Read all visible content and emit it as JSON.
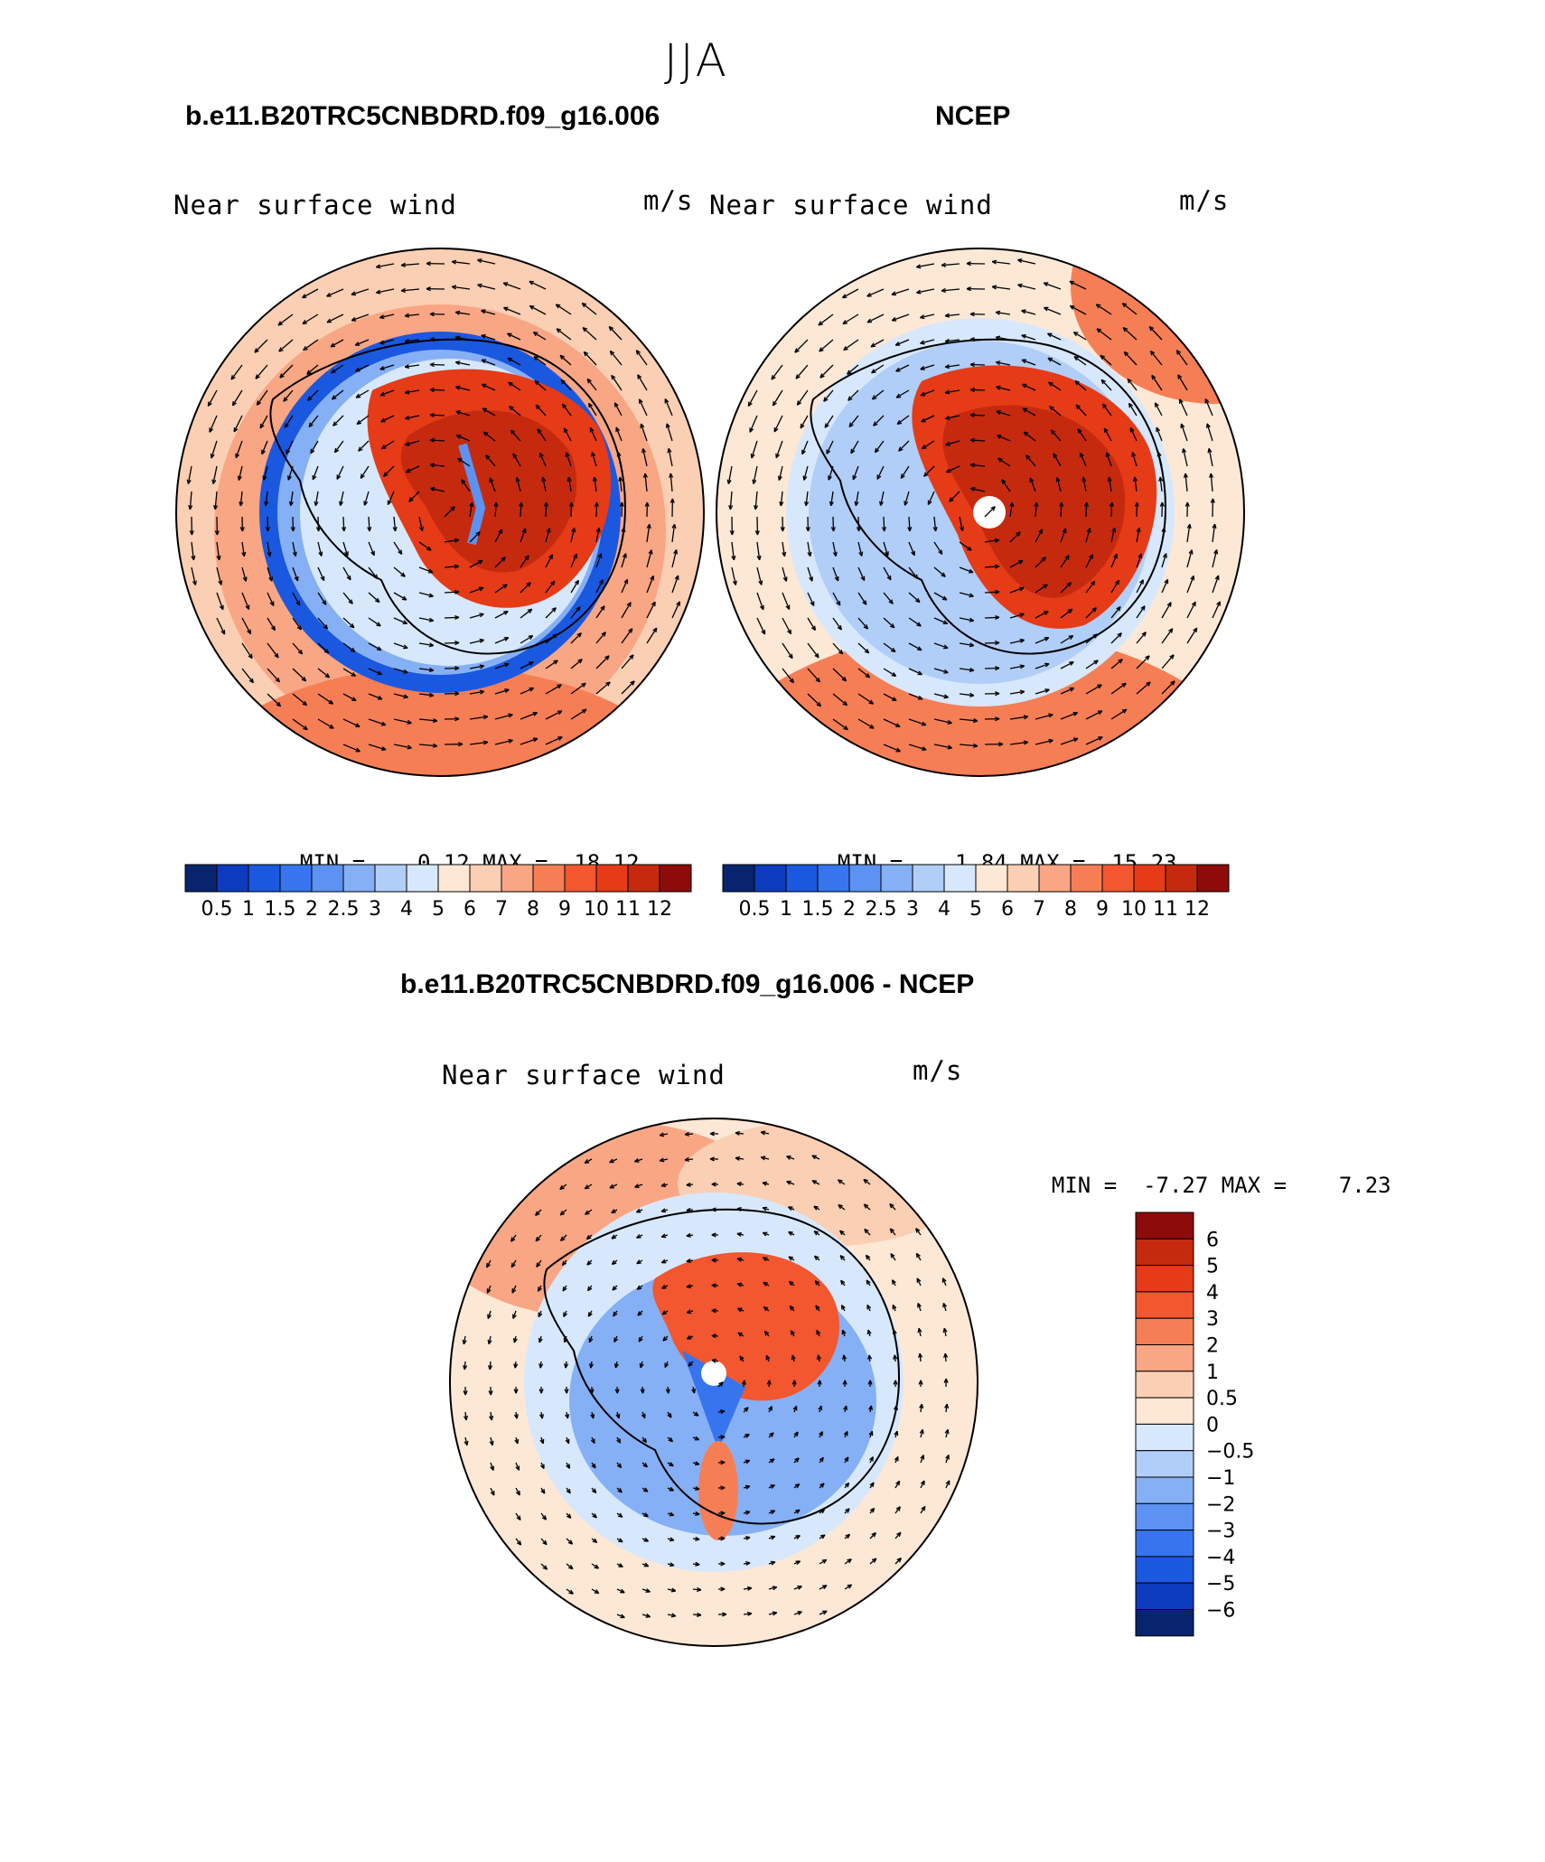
{
  "figure": {
    "season": "JJA"
  },
  "colors": {
    "cold": [
      "#08246e",
      "#0d3bbd",
      "#1a58df",
      "#3675ee",
      "#5c93f2",
      "#86b0f5",
      "#b1cef9",
      "#d7e8fc"
    ],
    "warm": [
      "#fde8d6",
      "#fbcfb3",
      "#f9a684",
      "#f67e55",
      "#f2572f",
      "#e53b17",
      "#c52a0f",
      "#8e0b0b"
    ]
  },
  "chart_data": [
    {
      "type": "heatmap",
      "panel_title": "b.e11.B20TRC5CNBDRD.f09_g16.006",
      "variable": "Near surface wind",
      "units": "m/s",
      "min_label": "MIN =",
      "min": "0.12",
      "max_label": "MAX =",
      "max": "18.12",
      "levels": [
        "0.5",
        "1",
        "1.5",
        "2",
        "2.5",
        "3",
        "4",
        "5",
        "6",
        "7",
        "8",
        "9",
        "10",
        "11",
        "12"
      ],
      "field": "absolute"
    },
    {
      "type": "heatmap",
      "panel_title": "NCEP",
      "variable": "Near surface wind",
      "units": "m/s",
      "min_label": "MIN =",
      "min": "1.84",
      "max_label": "MAX =",
      "max": "15.23",
      "levels": [
        "0.5",
        "1",
        "1.5",
        "2",
        "2.5",
        "3",
        "4",
        "5",
        "6",
        "7",
        "8",
        "9",
        "10",
        "11",
        "12"
      ],
      "field": "absolute"
    },
    {
      "type": "heatmap",
      "panel_title": "b.e11.B20TRC5CNBDRD.f09_g16.006 - NCEP",
      "variable": "Near surface wind",
      "units": "m/s",
      "min_label": "MIN =",
      "min": "-7.27",
      "max_label": "MAX =",
      "max": "7.23",
      "levels": [
        "6",
        "5",
        "4",
        "3",
        "2",
        "1",
        "0.5",
        "0",
        "−0.5",
        "−1",
        "−2",
        "−3",
        "−4",
        "−5",
        "−6"
      ],
      "field": "difference"
    }
  ]
}
